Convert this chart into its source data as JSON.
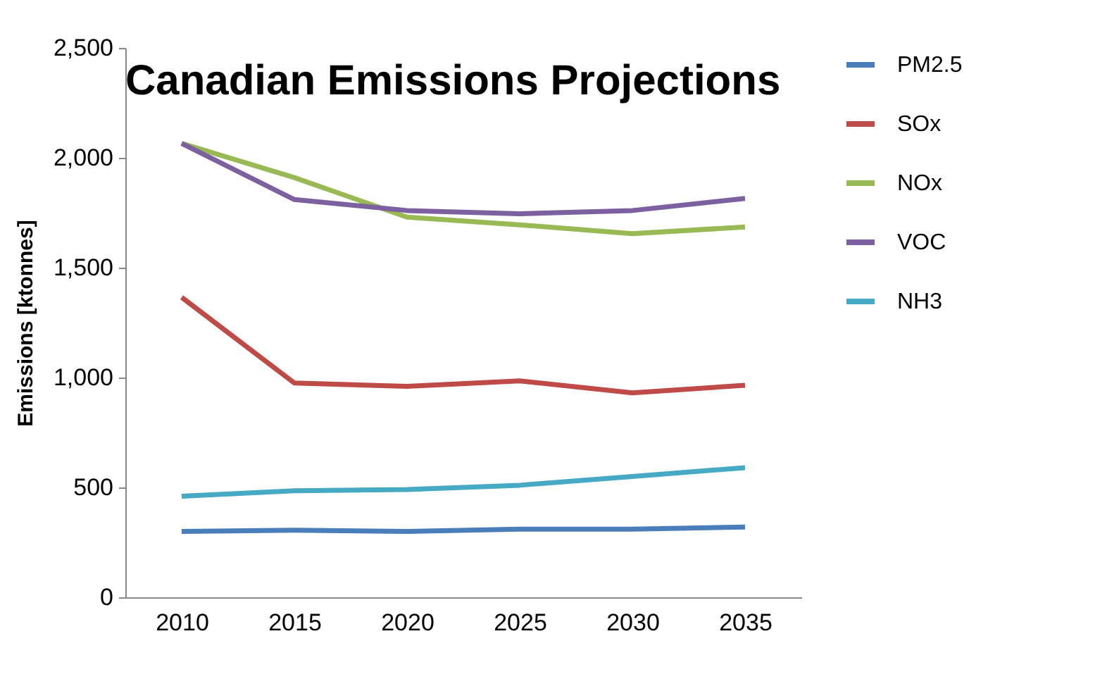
{
  "chart_data": {
    "type": "line",
    "title": "Canadian Emissions Projections",
    "ylabel": "Emissions [ktonnes]",
    "categories": [
      "2010",
      "2015",
      "2020",
      "2025",
      "2030",
      "2035"
    ],
    "series": [
      {
        "name": "PM2.5",
        "color": "#4a7ebb",
        "values": [
          300,
          305,
          300,
          310,
          310,
          320
        ]
      },
      {
        "name": "SOx",
        "color": "#be4b48",
        "values": [
          1365,
          975,
          960,
          985,
          930,
          965
        ]
      },
      {
        "name": "NOx",
        "color": "#98b954",
        "values": [
          2065,
          1910,
          1730,
          1695,
          1655,
          1685
        ]
      },
      {
        "name": "VOC",
        "color": "#7d60a0",
        "values": [
          2065,
          1810,
          1760,
          1745,
          1760,
          1815
        ]
      },
      {
        "name": "NH3",
        "color": "#46aac5",
        "values": [
          460,
          485,
          490,
          510,
          550,
          590
        ]
      }
    ],
    "ylim": [
      0,
      2500
    ],
    "yticks": [
      0,
      {
        "value": 500,
        "label": "500"
      },
      {
        "value": 1000,
        "label": "1,000"
      },
      {
        "value": 1500,
        "label": "1,500"
      },
      {
        "value": 2000,
        "label": "2,000"
      },
      {
        "value": 2500,
        "label": "2,500"
      }
    ],
    "grid": false,
    "legend": "right",
    "marker": "none",
    "line_style": "solid"
  }
}
